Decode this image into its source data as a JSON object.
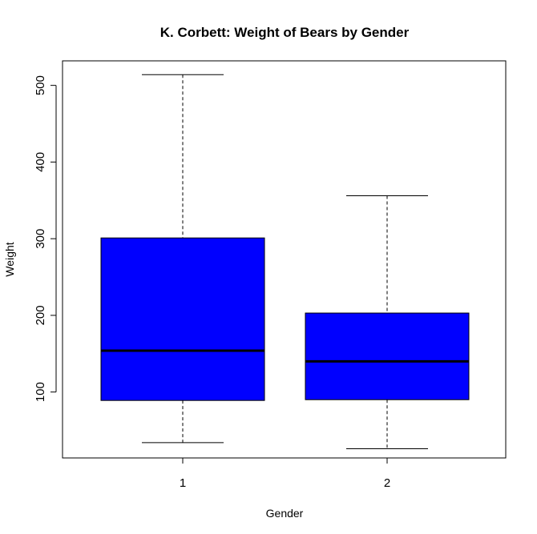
{
  "chart_data": {
    "type": "boxplot",
    "title": "K. Corbett: Weight of Bears by Gender",
    "xlabel": "Gender",
    "ylabel": "Weight",
    "categories": [
      "1",
      "2"
    ],
    "yticks": [
      100,
      200,
      300,
      400,
      500
    ],
    "yticks_text": [
      "100",
      "200",
      "300",
      "400",
      "500"
    ],
    "ylim": [
      14,
      532
    ],
    "box_color": "#0000ff",
    "boxes": [
      {
        "category": "1",
        "min": 34,
        "q1": 89,
        "median": 154,
        "q3": 301,
        "max": 514
      },
      {
        "category": "2",
        "min": 26,
        "q1": 90,
        "median": 140,
        "q3": 203,
        "max": 356
      }
    ]
  }
}
